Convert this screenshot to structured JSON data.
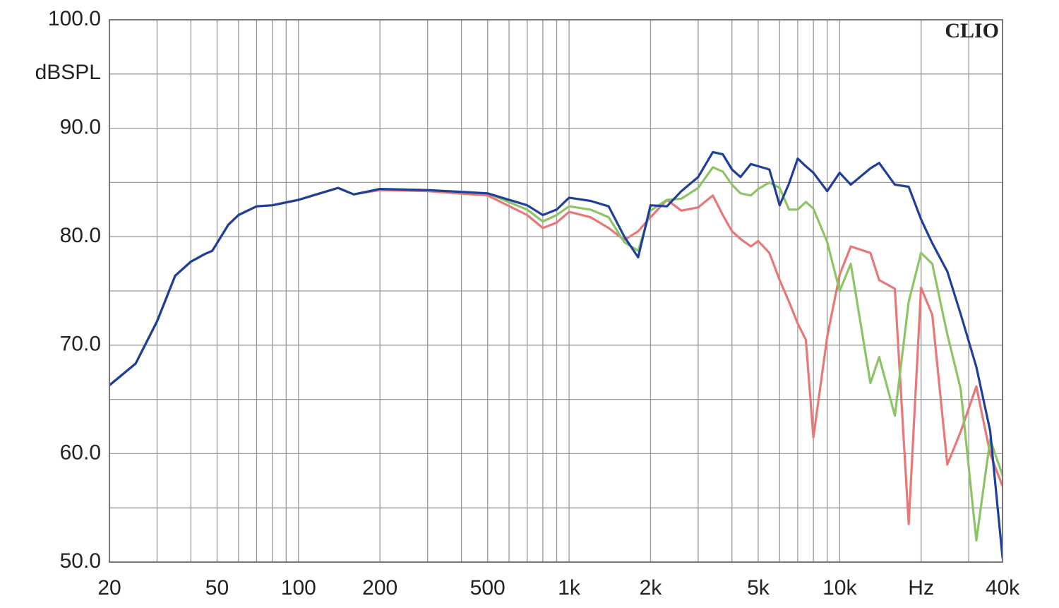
{
  "chart_data": {
    "type": "line",
    "brand": "CLIO",
    "y_label": "dBSPL",
    "log_x": true,
    "grid": true,
    "x": [
      20,
      25,
      30,
      35,
      40,
      45,
      48,
      55,
      60,
      70,
      80,
      100,
      120,
      140,
      160,
      200,
      300,
      500,
      700,
      800,
      900,
      1000,
      1200,
      1400,
      1600,
      1800,
      2000,
      2300,
      2600,
      3000,
      3400,
      3700,
      4000,
      4300,
      4700,
      5000,
      5500,
      6000,
      6500,
      7000,
      7500,
      8000,
      9000,
      10000,
      11000,
      13000,
      14000,
      16000,
      18000,
      20000,
      22000,
      25000,
      28000,
      32000,
      36000,
      40000
    ],
    "series": [
      {
        "color": "#e87878",
        "values": [
          66.3,
          68.3,
          72.2,
          76.4,
          77.7,
          78.4,
          78.7,
          81.1,
          82,
          82.8,
          82.9,
          83.4,
          84,
          84.5,
          83.9,
          84.3,
          84.2,
          83.8,
          82,
          80.8,
          81.3,
          82.3,
          81.8,
          80.8,
          79.7,
          80.5,
          81.8,
          83.4,
          82.4,
          82.7,
          83.8,
          82,
          80.5,
          79.8,
          79.1,
          79.6,
          78.5,
          76,
          74,
          72,
          70.5,
          61.5,
          70.8,
          76.5,
          79.1,
          78.5,
          76,
          75.2,
          53.5,
          75.3,
          72.8,
          59,
          62,
          66.2,
          60,
          57
        ]
      },
      {
        "color": "#8cc466",
        "values": [
          66.3,
          68.3,
          72.2,
          76.4,
          77.7,
          78.4,
          78.7,
          81.1,
          82,
          82.8,
          82.9,
          83.4,
          84,
          84.5,
          83.9,
          84.4,
          84.3,
          84,
          82.5,
          81.4,
          82,
          82.8,
          82.5,
          81.8,
          79.5,
          78.7,
          82.4,
          83.4,
          83.5,
          84.5,
          86.4,
          86,
          84.8,
          84,
          83.8,
          84.4,
          85,
          84.5,
          82.5,
          82.5,
          83.2,
          82.6,
          79.5,
          75,
          77.5,
          66.5,
          68.9,
          63.5,
          74,
          78.5,
          77.5,
          71,
          66,
          52,
          61.3,
          58
        ]
      },
      {
        "color": "#1f3f99",
        "values": [
          66.3,
          68.3,
          72.2,
          76.4,
          77.7,
          78.4,
          78.7,
          81.1,
          82,
          82.8,
          82.9,
          83.4,
          84,
          84.5,
          83.9,
          84.4,
          84.3,
          84,
          82.9,
          82,
          82.5,
          83.6,
          83.3,
          82.8,
          80,
          78.1,
          82.9,
          82.8,
          84.2,
          85.5,
          87.8,
          87.6,
          86.2,
          85.5,
          86.7,
          86.5,
          86.2,
          82.9,
          84.9,
          87.2,
          86.5,
          85.9,
          84.2,
          85.9,
          84.8,
          86.3,
          86.8,
          84.8,
          84.6,
          81.6,
          79.4,
          76.8,
          72.9,
          68,
          62.1,
          50.4
        ]
      }
    ],
    "xlim": [
      20,
      40000
    ],
    "xticks": [
      20,
      50,
      100,
      200,
      500,
      {
        "value": 1000,
        "label": "1k"
      },
      {
        "value": 2000,
        "label": "2k"
      },
      {
        "value": 5000,
        "label": "5k"
      },
      {
        "value": 10000,
        "label": "10k"
      },
      {
        "value": 20000,
        "label": "Hz"
      },
      {
        "value": 40000,
        "label": "40k"
      }
    ],
    "xminor": [
      30,
      40,
      60,
      70,
      80,
      90,
      300,
      400,
      600,
      700,
      800,
      900,
      3000,
      4000,
      6000,
      7000,
      8000,
      9000,
      30000
    ],
    "ylim": [
      50,
      100
    ],
    "yticks": [
      {
        "value": 50,
        "label": "50.0"
      },
      {
        "value": 60,
        "label": "60.0"
      },
      {
        "value": 70,
        "label": "70.0"
      },
      {
        "value": 80,
        "label": "80.0"
      },
      {
        "value": 90,
        "label": "90.0"
      },
      {
        "value": 100,
        "label": "100.0"
      }
    ],
    "yminor": [
      55,
      65,
      75,
      85,
      95
    ]
  }
}
